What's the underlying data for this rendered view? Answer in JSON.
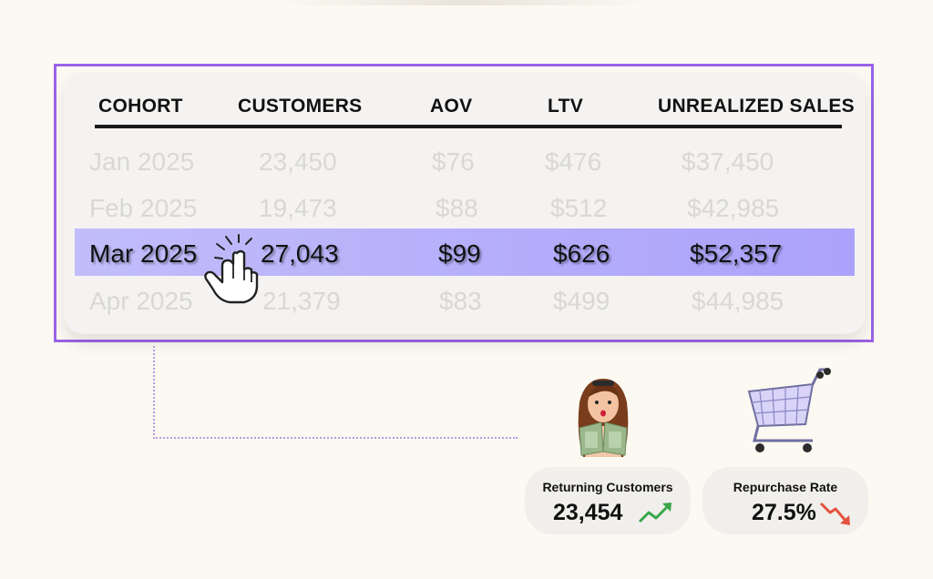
{
  "table": {
    "columns": [
      "COHORT",
      "CUSTOMERS",
      "AOV",
      "LTV",
      "UNREALIZED SALES"
    ],
    "rows": [
      {
        "cohort": "Jan 2025",
        "customers": "23,450",
        "aov": "$76",
        "ltv": "$476",
        "unrealized_sales": "$37,450",
        "selected": false
      },
      {
        "cohort": "Feb 2025",
        "customers": "19,473",
        "aov": "$88",
        "ltv": "$512",
        "unrealized_sales": "$42,985",
        "selected": false
      },
      {
        "cohort": "Mar 2025",
        "customers": "27,043",
        "aov": "$99",
        "ltv": "$626",
        "unrealized_sales": "$52,357",
        "selected": true
      },
      {
        "cohort": "Apr 2025",
        "customers": "21,379",
        "aov": "$83",
        "ltv": "$499",
        "unrealized_sales": "$44,985",
        "selected": false
      }
    ]
  },
  "stats": {
    "returning_customers": {
      "label": "Returning Customers",
      "value": "23,454",
      "trend": "up",
      "trend_color": "#3aa64a"
    },
    "repurchase_rate": {
      "label": "Repurchase Rate",
      "value": "27.5%",
      "trend": "down",
      "trend_color": "#e2533f"
    }
  },
  "colors": {
    "frame_border": "#9b63e8",
    "highlight": "#b4acfa",
    "background": "#fcf9f2"
  },
  "icons": {
    "pointer": "hand-pointer-icon",
    "person": "person-with-money-illustration",
    "cart": "shopping-cart-illustration"
  }
}
